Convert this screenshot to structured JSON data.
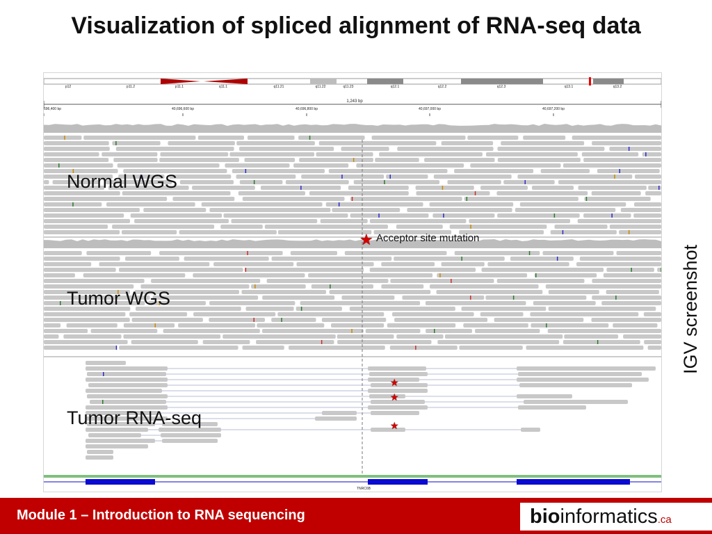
{
  "slide": {
    "title": "Visualization of spliced alignment of RNA-seq data",
    "side_label": "IGV screenshot",
    "callout": "Acceptor site mutation"
  },
  "tracks": [
    {
      "label": "Normal WGS"
    },
    {
      "label": "Tumor WGS"
    },
    {
      "label": "Tumor RNA-seq"
    }
  ],
  "igv": {
    "ideogram_bands": [
      "p12",
      "p11.2",
      "p11.1",
      "q11.1",
      "q11.21",
      "q11.22",
      "q11.23",
      "q12.1",
      "q12.2",
      "q12.3",
      "q13.1",
      "q13.2"
    ],
    "region_width": "1,243 bp",
    "ruler_ticks": [
      "696,400 bp",
      "40,696,600 bp",
      "40,696,800 bp",
      "40,697,000 bp",
      "40,697,200 bp"
    ],
    "gene_name": "TNRC6B",
    "colors": {
      "read": "#c8c8c8",
      "coverage": "#bdbdbd",
      "gene": "#0a0ad0",
      "mutation_star": "#d40000"
    }
  },
  "footer": {
    "module_text": "Module 1 – Introduction to RNA sequencing",
    "logo_bold": "bio",
    "logo_rest": "informatics",
    "logo_suffix": ".ca",
    "bg_color": "#c00000"
  }
}
